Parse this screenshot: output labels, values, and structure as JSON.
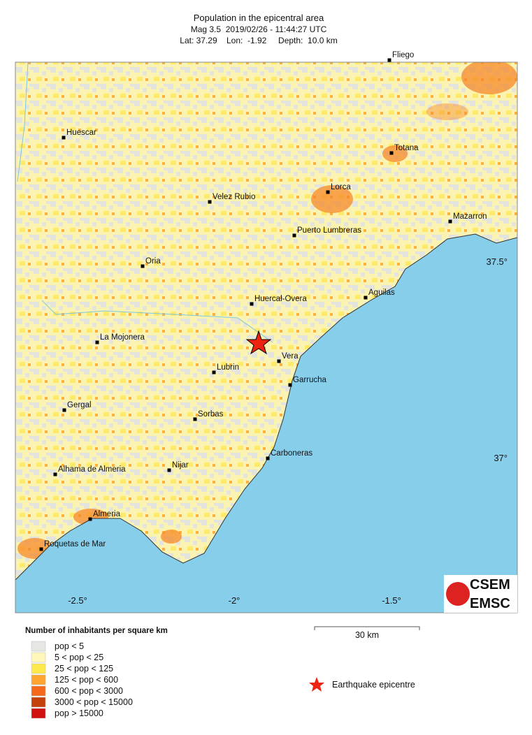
{
  "header": {
    "title": "Population in the epicentral area",
    "subtitle": "Mag 3.5  2019/02/26 - 11:44:27 UTC",
    "location": "Lat: 37.29    Lon:  -1.92     Depth:  10.0 km"
  },
  "towns": [
    "Fliego",
    "Huescar",
    "Velez Rubio",
    "Lorca",
    "Totana",
    "Mazarron",
    "Puerto Lumbreras",
    "Oria",
    "Aguilas",
    "Huercal-Overa",
    "La Mojonera",
    "Vera",
    "Lubrin",
    "Garrucha",
    "Gergal",
    "Sorbas",
    "Carboneras",
    "Alhama de Almeria",
    "Nijar",
    "Almeria",
    "Roquetas de Mar"
  ],
  "lon_labels": [
    "-2.5°",
    "-2°",
    "-1.5°"
  ],
  "lat_labels": [
    "37.5°",
    "37°"
  ],
  "legend": {
    "title": "Number of inhabitants per square km",
    "items": [
      {
        "label": "pop < 5",
        "color": "#e6e6e2"
      },
      {
        "label": "5 < pop < 25",
        "color": "#fff7bc"
      },
      {
        "label": "25 < pop < 125",
        "color": "#fee84a"
      },
      {
        "label": "125 < pop < 600",
        "color": "#fea531"
      },
      {
        "label": "600 < pop < 3000",
        "color": "#f46a1c"
      },
      {
        "label": "3000 < pop < 15000",
        "color": "#c4410c"
      },
      {
        "label": "pop > 15000",
        "color": "#d11010"
      }
    ]
  },
  "scale_bar": "30 km",
  "epicentre_label": "Earthquake epicentre",
  "logo": [
    "CSEM",
    "EMSC"
  ]
}
